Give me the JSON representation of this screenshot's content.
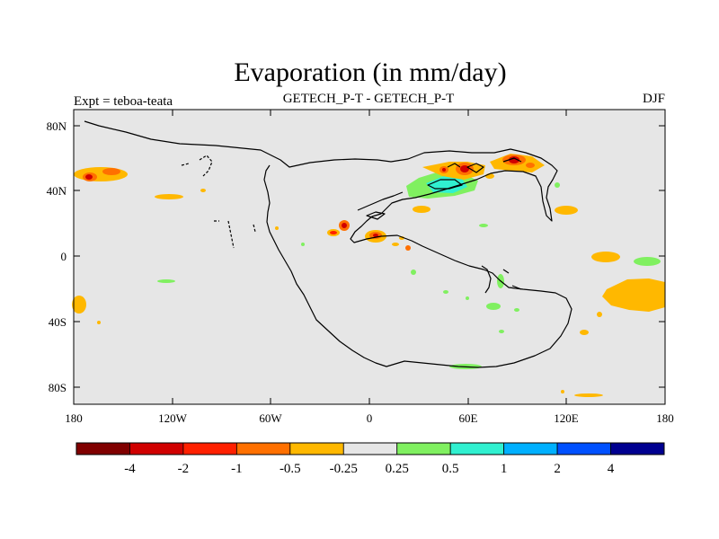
{
  "figure": {
    "title": "Evaporation (in mm/day)",
    "left_label": "Expt = teboa-teata",
    "center_label": "GETECH_P-T - GETECH_P-T",
    "right_label": "DJF"
  },
  "map": {
    "background_color": "#e6e6e6",
    "lat_ticks": [
      "80N",
      "40N",
      "0",
      "40S",
      "80S"
    ],
    "lon_ticks": [
      "180",
      "120W",
      "60W",
      "0",
      "60E",
      "120E",
      "180"
    ]
  },
  "colorbar": {
    "colors": [
      "#800000",
      "#d00000",
      "#ff2000",
      "#ff7000",
      "#ffb800",
      "#e6e6e6",
      "#80f060",
      "#30f0d0",
      "#00b0ff",
      "#0050ff",
      "#000090"
    ],
    "labels": [
      "-4",
      "-2",
      "-1",
      "-0.5",
      "-0.25",
      "0.25",
      "0.5",
      "1",
      "2",
      "4"
    ]
  }
}
